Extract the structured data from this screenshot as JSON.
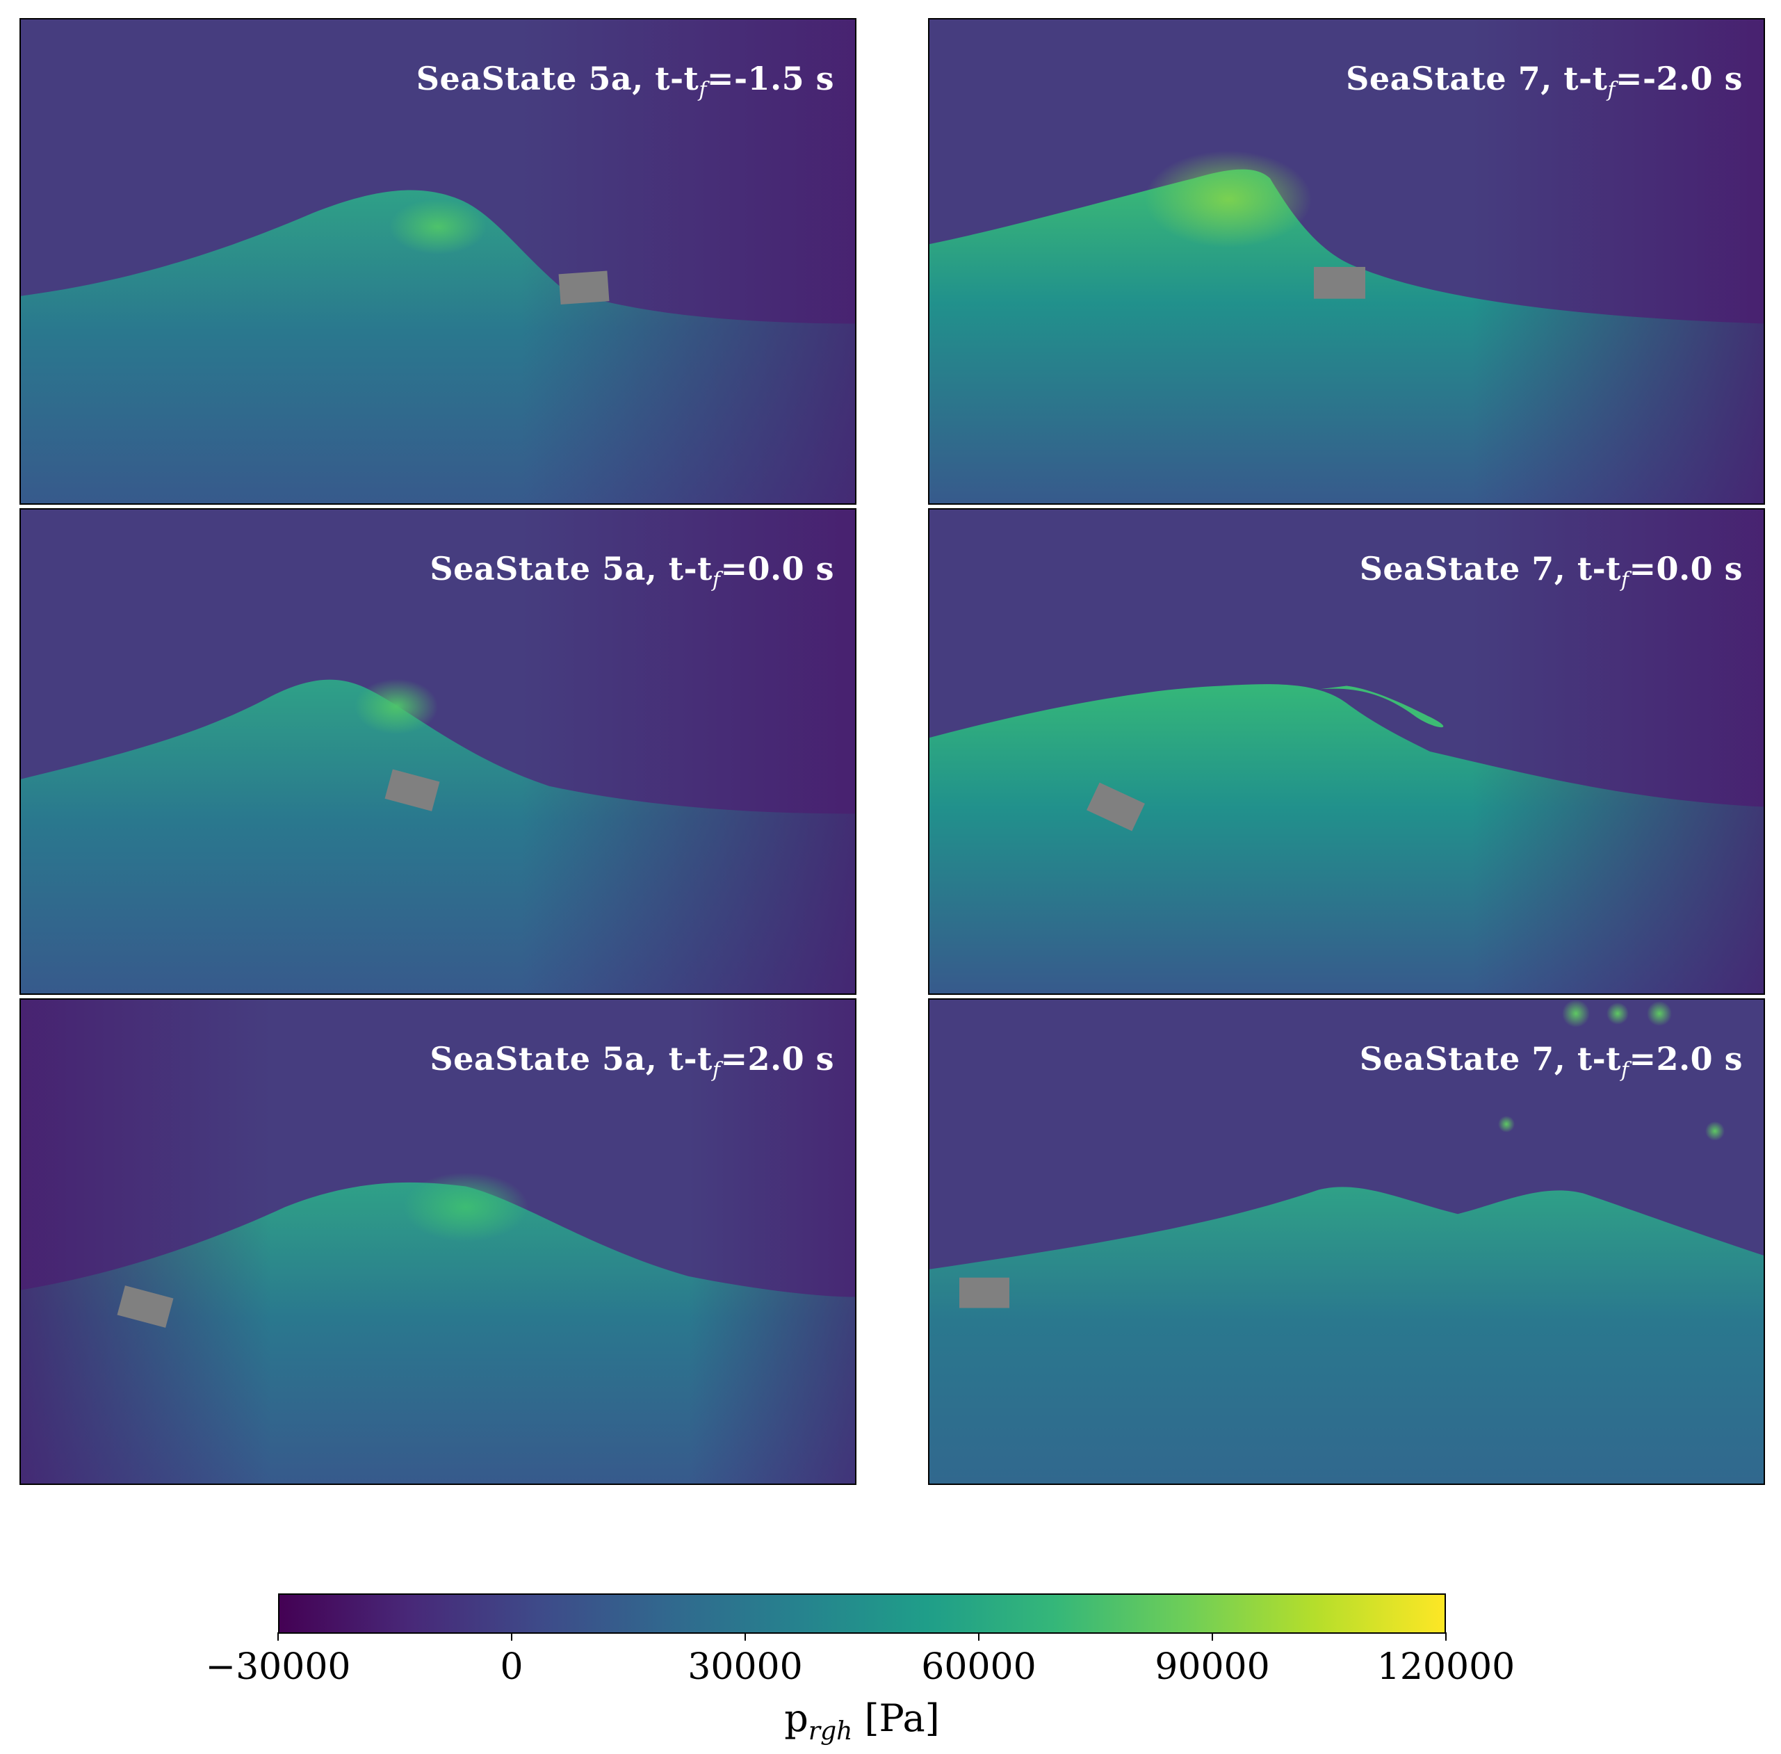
{
  "chart_data": {
    "type": "heatmap",
    "panels": [
      {
        "id": "ss5a-neg15",
        "title_prefix": "SeaState 5a, t-t",
        "title_sub": "f",
        "title_suffix": "=-1.5 s"
      },
      {
        "id": "ss7-neg20",
        "title_prefix": "SeaState 7, t-t",
        "title_sub": "f",
        "title_suffix": "=-2.0 s"
      },
      {
        "id": "ss5a-00",
        "title_prefix": "SeaState 5a, t-t",
        "title_sub": "f",
        "title_suffix": "=0.0 s"
      },
      {
        "id": "ss7-00",
        "title_prefix": "SeaState 7, t-t",
        "title_sub": "f",
        "title_suffix": "=0.0 s"
      },
      {
        "id": "ss5a-20",
        "title_prefix": "SeaState 5a, t-t",
        "title_sub": "f",
        "title_suffix": "=2.0 s"
      },
      {
        "id": "ss7-20",
        "title_prefix": "SeaState 7, t-t",
        "title_sub": "f",
        "title_suffix": "=2.0 s"
      }
    ],
    "colorbar": {
      "colormap": "viridis",
      "range": [
        -30000,
        120000
      ],
      "ticks": [
        -30000,
        0,
        30000,
        60000,
        90000,
        120000
      ],
      "tick_labels": [
        "−30000",
        "0",
        "30000",
        "60000",
        "90000",
        "120000"
      ],
      "label_main": "p",
      "label_sub": "rgh",
      "label_unit": " [Pa]"
    },
    "colors": {
      "air": "#463d7f",
      "water_top": "#2fa187",
      "water_mid": "#2a788e",
      "water_deep": "#3b5a8c",
      "crest": "#5ec962",
      "low_pressure": "#481a6c",
      "body": "#808080"
    }
  }
}
